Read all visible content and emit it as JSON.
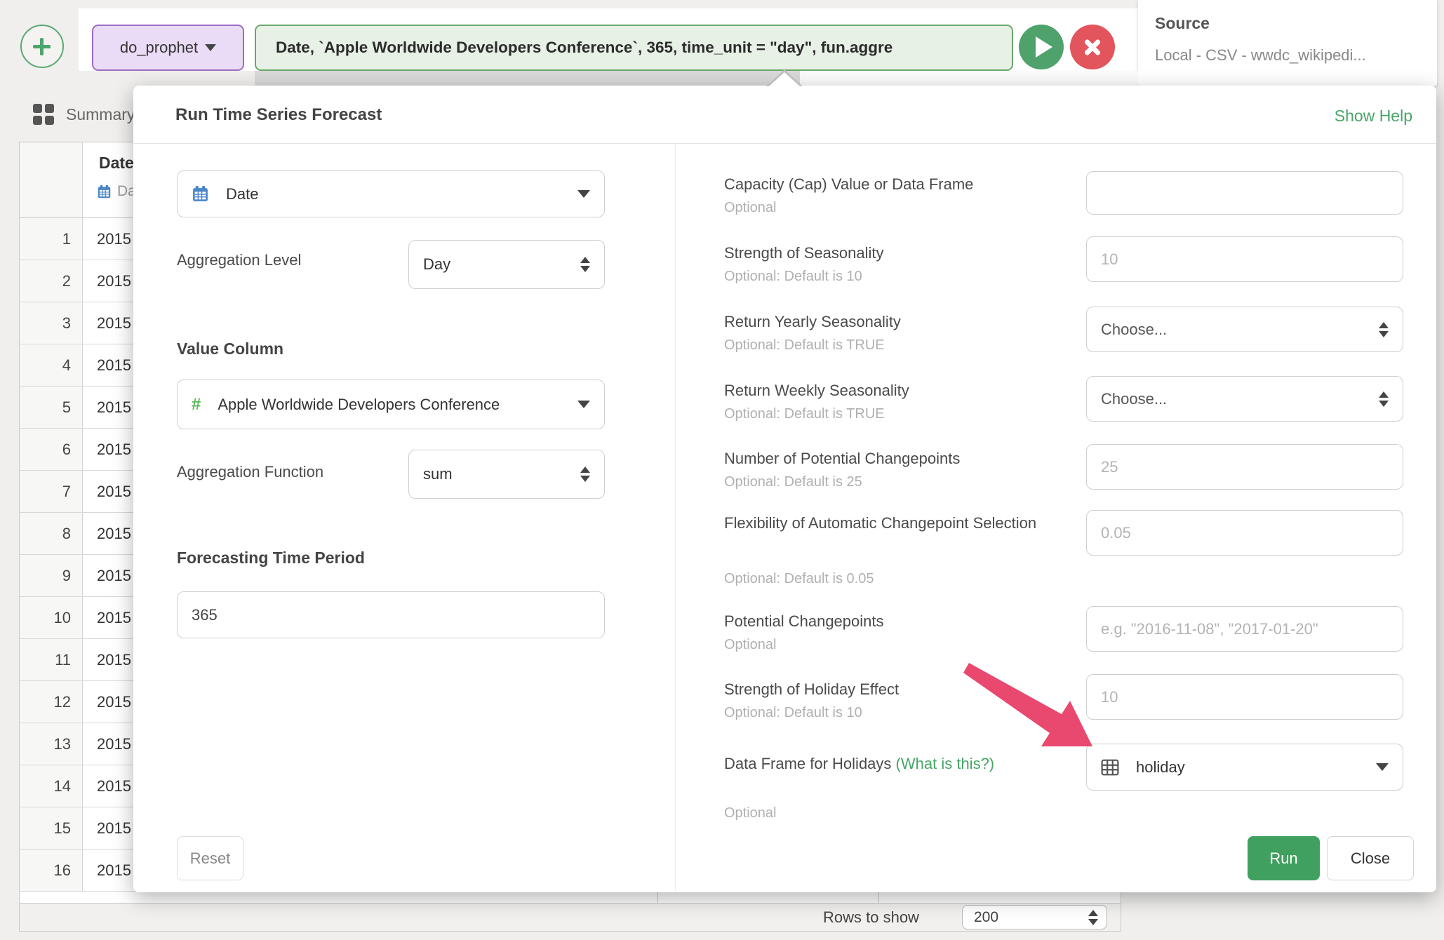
{
  "toolbar": {
    "step_name": "do_prophet",
    "command_text": "Date, `Apple Worldwide Developers Conference`, 365, time_unit = \"day\", fun.aggre",
    "colors": {
      "step_bg": "#eadcf6",
      "step_border": "#9b6ec1",
      "command_bg": "#e7f1e6",
      "command_border": "#6aa86a",
      "play": "#4fa26b",
      "stop": "#e2555c",
      "plus": "#4ca56d"
    }
  },
  "source_panel": {
    "title": "Source",
    "value": "Local - CSV - wwdc_wikipedi..."
  },
  "tabs": {
    "summary_label": "Summary"
  },
  "table": {
    "header": {
      "name": "Date",
      "type_label": "Date"
    },
    "rows": [
      {
        "num": "1",
        "value": "2015"
      },
      {
        "num": "2",
        "value": "2015"
      },
      {
        "num": "3",
        "value": "2015"
      },
      {
        "num": "4",
        "value": "2015"
      },
      {
        "num": "5",
        "value": "2015"
      },
      {
        "num": "6",
        "value": "2015"
      },
      {
        "num": "7",
        "value": "2015"
      },
      {
        "num": "8",
        "value": "2015"
      },
      {
        "num": "9",
        "value": "2015"
      },
      {
        "num": "10",
        "value": "2015"
      },
      {
        "num": "11",
        "value": "2015"
      },
      {
        "num": "12",
        "value": "2015"
      },
      {
        "num": "13",
        "value": "2015"
      },
      {
        "num": "14",
        "value": "2015"
      },
      {
        "num": "15",
        "value": "2015"
      },
      {
        "num": "16",
        "value": "2015"
      }
    ],
    "footer": {
      "rows_to_show_label": "Rows to show",
      "rows_value": "200"
    }
  },
  "dialog": {
    "title": "Run Time Series Forecast",
    "help_link": "Show Help",
    "left": {
      "date_value": "Date",
      "aggregation_level_label": "Aggregation Level",
      "aggregation_level_value": "Day",
      "value_column_heading": "Value Column",
      "value_column_icon": "#",
      "value_column_value": "Apple Worldwide Developers Conference",
      "aggregation_function_label": "Aggregation Function",
      "aggregation_function_value": "sum",
      "forecasting_heading": "Forecasting Time Period",
      "forecasting_value": "365",
      "reset_label": "Reset"
    },
    "right_fields": [
      {
        "label": "Capacity (Cap) Value or Data Frame",
        "sub": "Optional",
        "value": ""
      },
      {
        "label": "Strength of Seasonality",
        "sub": "Optional: Default is 10",
        "placeholder": "10"
      },
      {
        "label": "Return Yearly Seasonality",
        "sub": "Optional: Default is TRUE",
        "value": "Choose..."
      },
      {
        "label": "Return Weekly Seasonality",
        "sub": "Optional: Default is TRUE",
        "value": "Choose..."
      },
      {
        "label": "Number of Potential Changepoints",
        "sub": "Optional: Default is 25",
        "placeholder": "25"
      },
      {
        "label": "Flexibility of Automatic Changepoint Selection",
        "sub": "Optional: Default is 0.05",
        "placeholder": "0.05"
      },
      {
        "label": "Potential Changepoints",
        "sub": "Optional",
        "placeholder": "e.g. \"2016-11-08\", \"2017-01-20\""
      },
      {
        "label": "Strength of Holiday Effect",
        "sub": "Optional: Default is 10",
        "placeholder": "10"
      },
      {
        "label": "Data Frame for Holidays",
        "what_is_link": "(What is this?)",
        "sub": "Optional",
        "value": "holiday"
      }
    ],
    "run_label": "Run",
    "close_label": "Close",
    "accent_green": "#40a060",
    "arrow_color": "#e9486f"
  }
}
